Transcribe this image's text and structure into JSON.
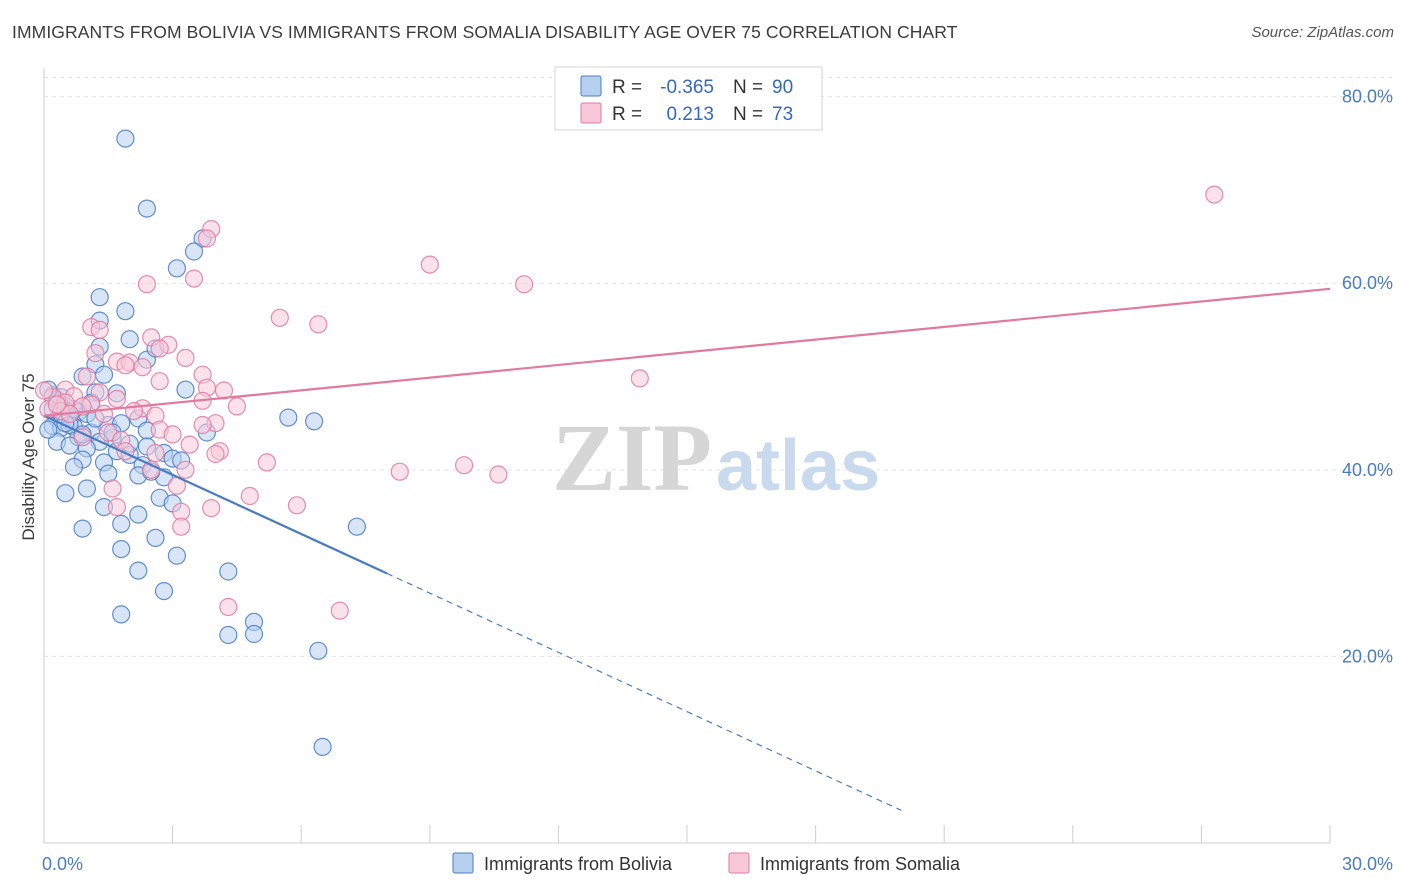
{
  "title": "IMMIGRANTS FROM BOLIVIA VS IMMIGRANTS FROM SOMALIA DISABILITY AGE OVER 75 CORRELATION CHART",
  "source": "Source: ZipAtlas.com",
  "watermark": {
    "zip": "ZIP",
    "atlas": "atlas"
  },
  "stats_box": {
    "r_label": "R =",
    "n_label": "N =",
    "rows": [
      {
        "series": "Immigrants from Bolivia",
        "r": "-0.365",
        "n": "90",
        "color": "#4a7cc4",
        "fill": "#b8d0f0"
      },
      {
        "series": "Immigrants from Somalia",
        "r": "0.213",
        "n": "73",
        "color": "#e07a9f",
        "fill": "#f8c8d8"
      }
    ]
  },
  "chart_data": {
    "type": "scatter",
    "xlabel": "",
    "ylabel": "Disability Age Over 75",
    "xlim": [
      0,
      30
    ],
    "ylim": [
      0,
      82
    ],
    "x_tick_labels": [
      {
        "value": 0,
        "label": "0.0%"
      },
      {
        "value": 30,
        "label": "30.0%"
      }
    ],
    "x_minor_ticks": [
      0,
      3,
      6,
      9,
      12,
      15,
      18,
      21,
      24,
      27,
      30
    ],
    "y_ticks": [
      {
        "value": 20,
        "label": "20.0%"
      },
      {
        "value": 40,
        "label": "40.0%"
      },
      {
        "value": 60,
        "label": "60.0%"
      },
      {
        "value": 80,
        "label": "80.0%"
      }
    ],
    "grid": true,
    "legend_position": "bottom-center",
    "series": [
      {
        "name": "Immigrants from Bolivia",
        "color": "#4a7cc4",
        "fill": "#b8d0f0",
        "trend": {
          "x0": 0.0,
          "y0": 45.8,
          "x1": 8.0,
          "y1": 28.9,
          "dash_x1": 20.0,
          "dash_y1": 3.5
        },
        "points": [
          [
            1.9,
            75.5
          ],
          [
            2.4,
            68.0
          ],
          [
            3.7,
            64.8
          ],
          [
            3.1,
            61.6
          ],
          [
            3.5,
            63.4
          ],
          [
            1.3,
            58.5
          ],
          [
            1.3,
            56.0
          ],
          [
            1.9,
            57.0
          ],
          [
            1.3,
            53.2
          ],
          [
            2.0,
            54.0
          ],
          [
            2.4,
            51.8
          ],
          [
            2.6,
            53.0
          ],
          [
            1.2,
            51.3
          ],
          [
            0.9,
            50.0
          ],
          [
            1.4,
            50.2
          ],
          [
            3.3,
            48.6
          ],
          [
            0.2,
            48.0
          ],
          [
            0.4,
            47.8
          ],
          [
            1.7,
            48.2
          ],
          [
            1.2,
            48.3
          ],
          [
            0.5,
            46.8
          ],
          [
            0.8,
            46.2
          ],
          [
            1.0,
            46.0
          ],
          [
            0.3,
            45.5
          ],
          [
            0.6,
            45.2
          ],
          [
            1.5,
            44.8
          ],
          [
            2.2,
            45.5
          ],
          [
            0.2,
            44.7
          ],
          [
            0.4,
            44.5
          ],
          [
            0.7,
            44.6
          ],
          [
            1.1,
            44.0
          ],
          [
            0.8,
            43.5
          ],
          [
            0.3,
            43.0
          ],
          [
            1.6,
            43.4
          ],
          [
            2.4,
            44.2
          ],
          [
            1.3,
            43.0
          ],
          [
            0.6,
            42.6
          ],
          [
            1.0,
            42.3
          ],
          [
            1.7,
            42.0
          ],
          [
            2.0,
            41.6
          ],
          [
            2.8,
            41.8
          ],
          [
            3.0,
            41.2
          ],
          [
            0.9,
            41.1
          ],
          [
            1.4,
            40.8
          ],
          [
            2.3,
            40.5
          ],
          [
            0.7,
            40.3
          ],
          [
            1.5,
            39.6
          ],
          [
            2.2,
            39.4
          ],
          [
            2.8,
            39.2
          ],
          [
            0.5,
            37.5
          ],
          [
            1.0,
            38.0
          ],
          [
            2.7,
            37.0
          ],
          [
            3.0,
            36.4
          ],
          [
            1.4,
            36.0
          ],
          [
            2.2,
            35.2
          ],
          [
            0.9,
            33.7
          ],
          [
            1.8,
            34.2
          ],
          [
            2.6,
            32.7
          ],
          [
            1.8,
            31.5
          ],
          [
            3.1,
            30.8
          ],
          [
            2.2,
            29.2
          ],
          [
            4.3,
            29.1
          ],
          [
            2.8,
            27.0
          ],
          [
            1.8,
            24.5
          ],
          [
            4.9,
            23.7
          ],
          [
            4.3,
            22.3
          ],
          [
            4.9,
            22.4
          ],
          [
            6.4,
            20.6
          ],
          [
            6.5,
            10.3
          ],
          [
            5.7,
            45.6
          ],
          [
            6.3,
            45.2
          ],
          [
            7.3,
            33.9
          ],
          [
            2.0,
            42.8
          ],
          [
            0.2,
            46.5
          ],
          [
            0.6,
            44.8
          ],
          [
            0.4,
            46.0
          ],
          [
            1.8,
            45.0
          ],
          [
            0.1,
            44.3
          ],
          [
            2.5,
            39.8
          ],
          [
            1.1,
            47.2
          ],
          [
            0.3,
            47.5
          ],
          [
            0.9,
            43.8
          ],
          [
            3.2,
            41.0
          ],
          [
            1.6,
            44.0
          ],
          [
            0.5,
            45.0
          ],
          [
            2.4,
            42.5
          ],
          [
            3.8,
            44.0
          ],
          [
            0.7,
            46.5
          ],
          [
            1.2,
            45.5
          ],
          [
            0.1,
            48.6
          ]
        ]
      },
      {
        "name": "Immigrants from Somalia",
        "color": "#e07a9f",
        "fill": "#f8c8d8",
        "trend": {
          "x0": 0.0,
          "y0": 45.8,
          "x1": 30.0,
          "y1": 59.4
        },
        "points": [
          [
            27.3,
            69.5
          ],
          [
            3.9,
            65.8
          ],
          [
            3.8,
            64.8
          ],
          [
            9.0,
            62.0
          ],
          [
            11.2,
            59.9
          ],
          [
            2.4,
            59.9
          ],
          [
            3.5,
            60.5
          ],
          [
            5.5,
            56.3
          ],
          [
            6.4,
            55.6
          ],
          [
            1.1,
            55.3
          ],
          [
            1.3,
            55.0
          ],
          [
            2.5,
            54.2
          ],
          [
            2.9,
            53.4
          ],
          [
            2.7,
            53.0
          ],
          [
            1.2,
            52.5
          ],
          [
            3.3,
            52.0
          ],
          [
            1.7,
            51.6
          ],
          [
            2.0,
            51.5
          ],
          [
            1.9,
            51.2
          ],
          [
            2.3,
            51.0
          ],
          [
            13.9,
            49.8
          ],
          [
            3.7,
            50.2
          ],
          [
            1.0,
            50.0
          ],
          [
            2.7,
            49.5
          ],
          [
            3.8,
            48.8
          ],
          [
            4.2,
            48.5
          ],
          [
            0.5,
            48.6
          ],
          [
            1.3,
            48.3
          ],
          [
            1.7,
            47.6
          ],
          [
            3.7,
            47.4
          ],
          [
            0.2,
            47.8
          ],
          [
            0.7,
            47.9
          ],
          [
            0.5,
            47.2
          ],
          [
            1.1,
            47.0
          ],
          [
            0.9,
            46.8
          ],
          [
            4.5,
            46.8
          ],
          [
            2.3,
            46.6
          ],
          [
            2.1,
            46.3
          ],
          [
            0.1,
            46.5
          ],
          [
            0.4,
            46.3
          ],
          [
            0.6,
            46.0
          ],
          [
            1.4,
            46.0
          ],
          [
            2.6,
            45.8
          ],
          [
            4.0,
            45.0
          ],
          [
            3.7,
            44.8
          ],
          [
            2.7,
            44.3
          ],
          [
            1.5,
            44.0
          ],
          [
            3.0,
            43.8
          ],
          [
            0.9,
            43.5
          ],
          [
            1.8,
            43.2
          ],
          [
            4.1,
            42.0
          ],
          [
            2.6,
            41.8
          ],
          [
            1.9,
            42.0
          ],
          [
            2.5,
            40.0
          ],
          [
            3.3,
            40.0
          ],
          [
            3.4,
            42.7
          ],
          [
            4.0,
            41.7
          ],
          [
            5.2,
            40.8
          ],
          [
            8.3,
            39.8
          ],
          [
            9.8,
            40.5
          ],
          [
            10.6,
            39.5
          ],
          [
            1.6,
            38.0
          ],
          [
            3.1,
            38.3
          ],
          [
            4.8,
            37.2
          ],
          [
            1.7,
            36.0
          ],
          [
            3.9,
            35.9
          ],
          [
            3.2,
            35.5
          ],
          [
            5.9,
            36.2
          ],
          [
            3.2,
            33.9
          ],
          [
            4.3,
            25.3
          ],
          [
            6.9,
            24.9
          ],
          [
            0.3,
            47.0
          ],
          [
            0.0,
            48.5
          ]
        ]
      }
    ]
  }
}
